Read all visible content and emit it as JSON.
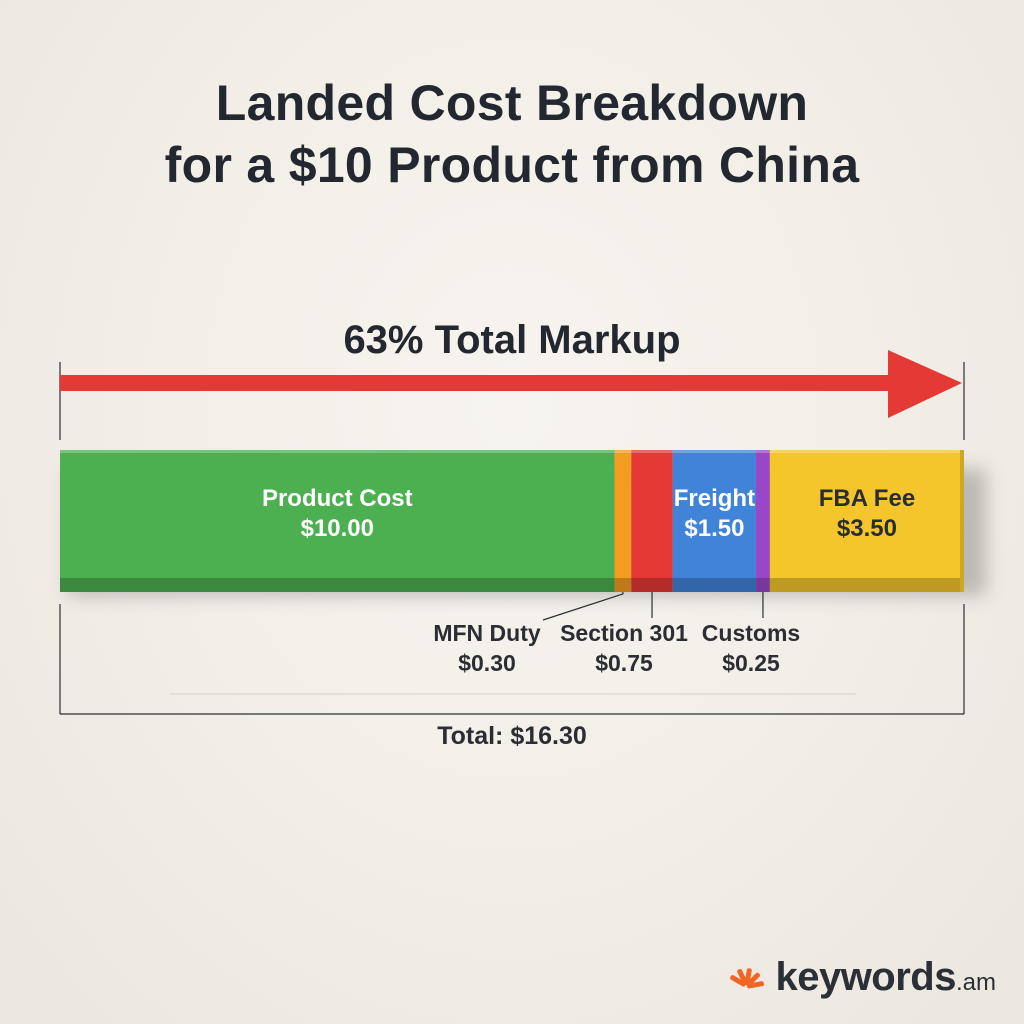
{
  "title_line1": "Landed Cost Breakdown",
  "title_line2": "for a $10 Product from China",
  "markup_label": "63% Total Markup",
  "total_label": "Total: $16.30",
  "brand": {
    "name": "keywords",
    "tld": ".am",
    "accent": "#f26522"
  },
  "chart_data": {
    "type": "bar",
    "orientation": "horizontal-stacked",
    "segments": [
      {
        "name": "Product Cost",
        "value": 10.0,
        "value_label": "$10.00",
        "color": "#4caf50",
        "text_color": "#ffffff",
        "label_inside": true
      },
      {
        "name": "MFN Duty",
        "value": 0.3,
        "value_label": "$0.30",
        "color": "#f39c1f",
        "label_inside": false
      },
      {
        "name": "Section 301",
        "value": 0.75,
        "value_label": "$0.75",
        "color": "#e53935",
        "label_inside": false
      },
      {
        "name": "Freight",
        "value": 1.5,
        "value_label": "$1.50",
        "color": "#3f84d9",
        "text_color": "#ffffff",
        "label_inside": true
      },
      {
        "name": "Customs",
        "value": 0.25,
        "value_label": "$0.25",
        "color": "#9b45c8",
        "label_inside": false
      },
      {
        "name": "FBA Fee",
        "value": 3.5,
        "value_label": "$3.50",
        "color": "#f5c52c",
        "text_color": "#2a2e34",
        "label_inside": true
      }
    ],
    "total": 16.3,
    "markup_percent": 63,
    "arrow_color": "#e53935"
  }
}
